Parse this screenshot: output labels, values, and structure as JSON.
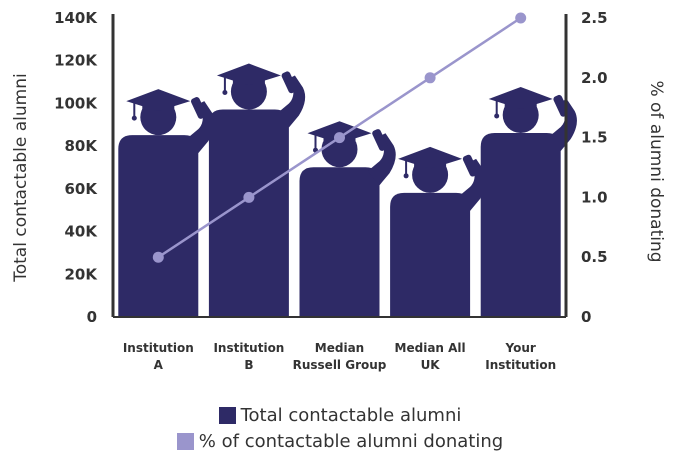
{
  "chart_data": {
    "type": "bar",
    "categories": [
      [
        "Institution",
        "A"
      ],
      [
        "Institution",
        "B"
      ],
      [
        "Median",
        "Russell Group"
      ],
      [
        "Median All",
        "UK"
      ],
      [
        "Your",
        "Institution"
      ]
    ],
    "series": [
      {
        "name": "Total contactable alumni",
        "type": "bar",
        "axis": "left",
        "values": [
          102000,
          114000,
          87000,
          75000,
          103000
        ]
      },
      {
        "name": "% of contactable alumni donating",
        "type": "line",
        "axis": "right",
        "values": [
          0.5,
          1.0,
          1.5,
          2.0,
          2.5
        ]
      }
    ],
    "ylabel_left": "Total contactable alumni",
    "ylabel_right": "% of alumni donating",
    "ylim_left": [
      0,
      140000
    ],
    "ylim_right": [
      0,
      2.5
    ],
    "yticks_left": [
      "0",
      "20K",
      "40K",
      "60K",
      "80K",
      "100K",
      "120K",
      "140K"
    ],
    "yticks_right": [
      "0",
      "0.5",
      "1.0",
      "1.5",
      "2.0",
      "2.5"
    ],
    "grid": false,
    "legend_position": "bottom",
    "colors": {
      "bar": "#2e2a66",
      "line": "#9a95cc",
      "axis": "#333333"
    },
    "bar_icon": "graduate-on-phone-icon"
  }
}
